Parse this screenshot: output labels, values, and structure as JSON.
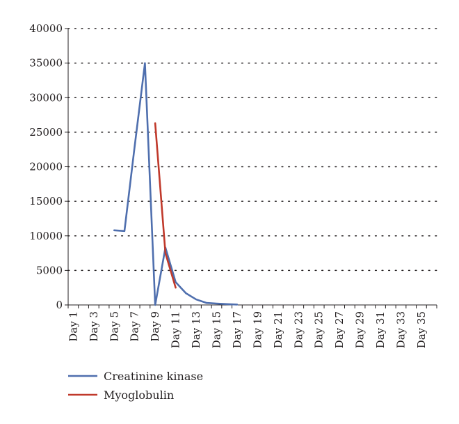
{
  "chart_data": {
    "type": "line",
    "title": "",
    "xlabel": "",
    "ylabel": "",
    "x": [
      "Day 1",
      "Day 2",
      "Day 3",
      "Day 4",
      "Day 5",
      "Day 6",
      "Day 7",
      "Day 8",
      "Day 9",
      "Day 10",
      "Day 11",
      "Day 12",
      "Day 13",
      "Day 14",
      "Day 15",
      "Day 16",
      "Day 17",
      "Day 18",
      "Day 19",
      "Day 20",
      "Day 21",
      "Day 22",
      "Day 23",
      "Day 24",
      "Day 25",
      "Day 26",
      "Day 27",
      "Day 28",
      "Day 29",
      "Day 30",
      "Day 31",
      "Day 32",
      "Day 33",
      "Day 34",
      "Day 35",
      "Day 36"
    ],
    "x_tick_labels": [
      "Day 1",
      "Day 3",
      "Day 5",
      "Day 7",
      "Day 9",
      "Day 11",
      "Day 13",
      "Day 15",
      "Day 17",
      "Day 19",
      "Day 21",
      "Day 23",
      "Day 25",
      "Day 27",
      "Day 29",
      "Day 31",
      "Day 33",
      "Day 35"
    ],
    "ylim": [
      0,
      40000
    ],
    "y_ticks": [
      0,
      5000,
      10000,
      15000,
      20000,
      25000,
      30000,
      35000,
      40000
    ],
    "grid": "horizontal-dotted",
    "legend": "bottom-left",
    "series": [
      {
        "name": "Creatinine kinase",
        "color": "#4f6fae",
        "points": [
          {
            "x": "Day 5",
            "y": 10800
          },
          {
            "x": "Day 6",
            "y": 10700
          },
          {
            "x": "Day 7",
            "y": 23000
          },
          {
            "x": "Day 8",
            "y": 35000
          },
          {
            "x": "Day 9",
            "y": 0
          },
          {
            "x": "Day 10",
            "y": 8300
          },
          {
            "x": "Day 11",
            "y": 3300
          },
          {
            "x": "Day 12",
            "y": 1700
          },
          {
            "x": "Day 13",
            "y": 800
          },
          {
            "x": "Day 14",
            "y": 300
          },
          {
            "x": "Day 15",
            "y": 200
          },
          {
            "x": "Day 16",
            "y": 120
          },
          {
            "x": "Day 17",
            "y": 60
          }
        ]
      },
      {
        "name": "Myoglobulin",
        "color": "#c0392b",
        "points": [
          {
            "x": "Day 9",
            "y": 26300
          },
          {
            "x": "Day 10",
            "y": 7500
          },
          {
            "x": "Day 11",
            "y": 2500
          }
        ]
      }
    ]
  }
}
